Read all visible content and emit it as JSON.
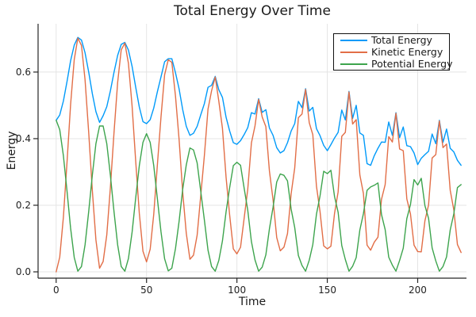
{
  "chart_data": {
    "type": "line",
    "title": "Total Energy Over Time",
    "xlabel": "Time",
    "ylabel": "Energy",
    "xlim": [
      -10,
      227
    ],
    "ylim": [
      -0.019,
      0.745
    ],
    "grid": true,
    "legend_position": "top-right",
    "xticks": {
      "values": [
        0,
        50,
        100,
        150,
        200
      ],
      "labels": [
        "0",
        "50",
        "100",
        "150",
        "200"
      ]
    },
    "yticks": {
      "values": [
        0.0,
        0.2,
        0.4,
        0.6
      ],
      "labels": [
        "0.0",
        "0.2",
        "0.4",
        "0.6"
      ]
    },
    "colors": {
      "total": "#009af9",
      "kinetic": "#e26e47",
      "potential": "#3da44d",
      "grid": "#e4e4e4",
      "axis": "#262626",
      "text": "#1f1f1f"
    },
    "x": [
      0,
      2,
      4,
      6,
      8,
      10,
      12,
      14,
      16,
      18,
      20,
      22,
      24,
      26,
      28,
      30,
      32,
      34,
      36,
      38,
      40,
      42,
      44,
      46,
      48,
      50,
      52,
      54,
      56,
      58,
      60,
      62,
      64,
      66,
      68,
      70,
      72,
      74,
      76,
      78,
      80,
      82,
      84,
      86,
      88,
      90,
      92,
      94,
      96,
      98,
      100,
      102,
      104,
      106,
      108,
      110,
      112,
      114,
      116,
      118,
      120,
      122,
      124,
      126,
      128,
      130,
      132,
      134,
      136,
      138,
      140,
      142,
      144,
      146,
      148,
      150,
      152,
      154,
      156,
      158,
      160,
      162,
      164,
      166,
      168,
      170,
      172,
      174,
      176,
      178,
      180,
      182,
      184,
      186,
      188,
      190,
      192,
      194,
      196,
      198,
      200,
      202,
      204,
      206,
      208,
      210,
      212,
      214,
      216,
      218,
      220,
      222,
      224
    ],
    "series": [
      {
        "name": "Total Energy",
        "color": "#009af9",
        "values": [
          0.455,
          0.471,
          0.513,
          0.572,
          0.634,
          0.681,
          0.704,
          0.696,
          0.658,
          0.6,
          0.535,
          0.481,
          0.449,
          0.469,
          0.496,
          0.543,
          0.599,
          0.65,
          0.683,
          0.689,
          0.666,
          0.617,
          0.555,
          0.495,
          0.451,
          0.445,
          0.457,
          0.492,
          0.541,
          0.585,
          0.631,
          0.64,
          0.64,
          0.598,
          0.55,
          0.487,
          0.437,
          0.41,
          0.416,
          0.437,
          0.472,
          0.505,
          0.554,
          0.56,
          0.587,
          0.547,
          0.524,
          0.464,
          0.423,
          0.388,
          0.383,
          0.394,
          0.412,
          0.433,
          0.478,
          0.474,
          0.52,
          0.479,
          0.487,
          0.432,
          0.41,
          0.373,
          0.357,
          0.364,
          0.388,
          0.423,
          0.445,
          0.512,
          0.493,
          0.55,
          0.483,
          0.494,
          0.43,
          0.409,
          0.38,
          0.364,
          0.382,
          0.402,
          0.419,
          0.486,
          0.456,
          0.542,
          0.461,
          0.5,
          0.417,
          0.41,
          0.325,
          0.32,
          0.349,
          0.371,
          0.39,
          0.389,
          0.45,
          0.41,
          0.478,
          0.403,
          0.435,
          0.379,
          0.376,
          0.357,
          0.322,
          0.341,
          0.352,
          0.362,
          0.414,
          0.385,
          0.455,
          0.389,
          0.429,
          0.371,
          0.36,
          0.335,
          0.32
        ]
      },
      {
        "name": "Kinetic Energy",
        "color": "#e26e47",
        "values": [
          0.0,
          0.044,
          0.164,
          0.33,
          0.503,
          0.638,
          0.702,
          0.68,
          0.577,
          0.419,
          0.244,
          0.096,
          0.011,
          0.031,
          0.111,
          0.252,
          0.418,
          0.569,
          0.667,
          0.687,
          0.626,
          0.498,
          0.334,
          0.176,
          0.062,
          0.03,
          0.068,
          0.173,
          0.322,
          0.464,
          0.592,
          0.637,
          0.629,
          0.528,
          0.399,
          0.239,
          0.116,
          0.038,
          0.05,
          0.11,
          0.231,
          0.349,
          0.489,
          0.544,
          0.585,
          0.513,
          0.431,
          0.283,
          0.17,
          0.069,
          0.054,
          0.074,
          0.16,
          0.248,
          0.387,
          0.438,
          0.518,
          0.465,
          0.436,
          0.303,
          0.216,
          0.103,
          0.063,
          0.074,
          0.115,
          0.235,
          0.312,
          0.463,
          0.474,
          0.548,
          0.448,
          0.412,
          0.257,
          0.181,
          0.078,
          0.069,
          0.077,
          0.176,
          0.24,
          0.407,
          0.419,
          0.54,
          0.444,
          0.457,
          0.291,
          0.235,
          0.08,
          0.065,
          0.089,
          0.104,
          0.218,
          0.262,
          0.406,
          0.39,
          0.476,
          0.369,
          0.364,
          0.219,
          0.174,
          0.08,
          0.061,
          0.06,
          0.153,
          0.201,
          0.342,
          0.352,
          0.453,
          0.373,
          0.384,
          0.245,
          0.185,
          0.082,
          0.058
        ]
      },
      {
        "name": "Potential Energy",
        "color": "#3da44d",
        "values": [
          0.455,
          0.427,
          0.349,
          0.242,
          0.131,
          0.043,
          0.002,
          0.016,
          0.081,
          0.181,
          0.291,
          0.385,
          0.438,
          0.438,
          0.385,
          0.291,
          0.181,
          0.081,
          0.016,
          0.002,
          0.04,
          0.119,
          0.221,
          0.319,
          0.389,
          0.415,
          0.389,
          0.319,
          0.219,
          0.121,
          0.039,
          0.003,
          0.011,
          0.07,
          0.151,
          0.248,
          0.321,
          0.372,
          0.366,
          0.327,
          0.241,
          0.156,
          0.065,
          0.016,
          0.002,
          0.034,
          0.093,
          0.181,
          0.253,
          0.319,
          0.329,
          0.32,
          0.252,
          0.185,
          0.091,
          0.036,
          0.002,
          0.014,
          0.051,
          0.129,
          0.194,
          0.27,
          0.294,
          0.29,
          0.273,
          0.188,
          0.133,
          0.049,
          0.019,
          0.002,
          0.035,
          0.082,
          0.173,
          0.228,
          0.302,
          0.295,
          0.305,
          0.226,
          0.179,
          0.079,
          0.037,
          0.002,
          0.017,
          0.043,
          0.126,
          0.175,
          0.245,
          0.255,
          0.26,
          0.267,
          0.172,
          0.127,
          0.044,
          0.02,
          0.002,
          0.034,
          0.071,
          0.16,
          0.202,
          0.277,
          0.261,
          0.281,
          0.199,
          0.161,
          0.072,
          0.033,
          0.002,
          0.016,
          0.045,
          0.126,
          0.175,
          0.253,
          0.262
        ]
      }
    ]
  }
}
